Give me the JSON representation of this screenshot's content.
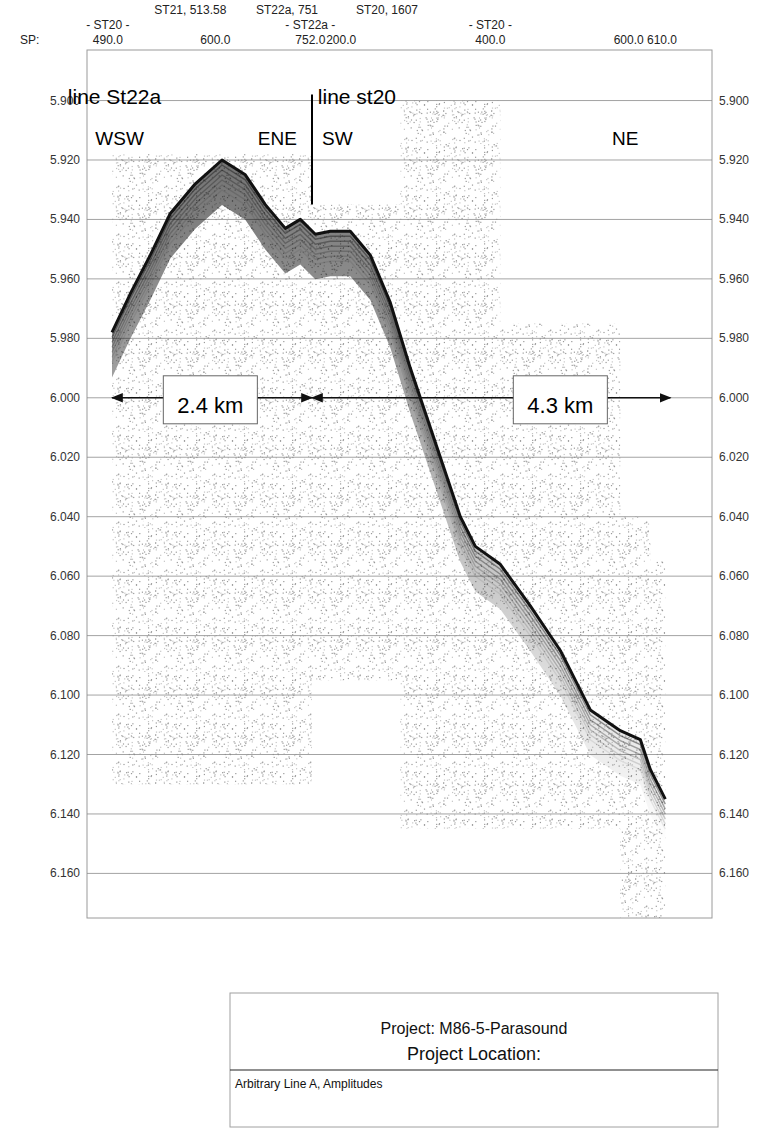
{
  "chart_data": {
    "type": "line",
    "x": [
      0,
      0.22,
      0.46,
      0.7,
      1.0,
      1.32,
      1.6,
      1.84,
      2.08,
      2.26,
      2.44,
      2.62,
      2.86,
      3.1,
      3.34,
      3.58,
      3.82,
      4.06,
      4.18,
      4.36,
      4.66,
      5.02,
      5.38,
      5.74,
      6.1,
      6.34,
      6.46,
      6.64
    ],
    "values": [
      5.978,
      5.965,
      5.952,
      5.938,
      5.928,
      5.92,
      5.925,
      5.935,
      5.943,
      5.94,
      5.945,
      5.944,
      5.944,
      5.952,
      5.968,
      5.99,
      6.01,
      6.03,
      6.04,
      6.05,
      6.056,
      6.07,
      6.085,
      6.105,
      6.112,
      6.115,
      6.125,
      6.135
    ],
    "color": "#111111",
    "xlim": [
      -0.3,
      7.2
    ],
    "ylim": [
      5.883,
      6.175
    ],
    "yticks": [
      {
        "value": 5.9,
        "label": "5.900"
      },
      {
        "value": 5.92,
        "label": "5.920"
      },
      {
        "value": 5.94,
        "label": "5.940"
      },
      {
        "value": 5.96,
        "label": "5.960"
      },
      {
        "value": 5.98,
        "label": "5.980"
      },
      {
        "value": 6.0,
        "label": "6.000"
      },
      {
        "value": 6.02,
        "label": "6.020"
      },
      {
        "value": 6.04,
        "label": "6.040"
      },
      {
        "value": 6.06,
        "label": "6.060"
      },
      {
        "value": 6.08,
        "label": "6.080"
      },
      {
        "value": 6.1,
        "label": "6.100"
      },
      {
        "value": 6.12,
        "label": "6.120"
      },
      {
        "value": 6.14,
        "label": "6.140"
      },
      {
        "value": 6.16,
        "label": "6.160"
      }
    ],
    "grid": true,
    "tick_labels": "y",
    "top_axis": {
      "prefix": "SP:",
      "ticks": [
        {
          "value": -0.05,
          "label": "490.0"
        },
        {
          "value": 1.24,
          "label": "600.0"
        },
        {
          "value": 2.38,
          "label": "752.0"
        },
        {
          "value": 2.75,
          "label": "200.0"
        },
        {
          "value": 4.54,
          "label": "400.0"
        },
        {
          "value": 6.2,
          "label": "600.0"
        },
        {
          "value": 6.6,
          "label": "610.0"
        }
      ],
      "line_labels": [
        {
          "value": -0.05,
          "label": "- ST20 -"
        },
        {
          "value": 2.38,
          "label": "- ST22a -"
        },
        {
          "value": 4.54,
          "label": "- ST20 -"
        }
      ],
      "stations": [
        {
          "value": 0.94,
          "label": "ST21, 513.58"
        },
        {
          "value": 2.1,
          "label": "ST22a, 751"
        },
        {
          "value": 3.3,
          "label": "ST20, 1607"
        }
      ]
    },
    "annotations": [
      {
        "text": "line St22a",
        "x": -0.53,
        "y": 5.901
      },
      {
        "text": "line st20",
        "x": 2.47,
        "y": 5.901
      },
      {
        "text": "WSW",
        "x": -0.2,
        "y": 5.915
      },
      {
        "text": "ENE",
        "x": 1.75,
        "y": 5.915
      },
      {
        "text": "SW",
        "x": 2.52,
        "y": 5.915
      },
      {
        "text": "NE",
        "x": 6.0,
        "y": 5.915
      }
    ],
    "divider": {
      "x": 2.4,
      "y": [
        5.898,
        5.935
      ]
    },
    "measurements": [
      {
        "from": 0,
        "to": 2.4,
        "y": 6.0,
        "label": "2.4 km",
        "label_x": 1.18
      },
      {
        "from": 2.4,
        "to": 6.7,
        "y": 6.0,
        "label": "4.3 km",
        "label_x": 5.38
      }
    ],
    "record_windows": [
      [
        0,
        2.4,
        5.918,
        6.13
      ],
      [
        2.4,
        3.46,
        5.935,
        6.095
      ],
      [
        3.46,
        4.66,
        5.9,
        6.145
      ],
      [
        4.66,
        6.1,
        5.975,
        6.145
      ],
      [
        6.1,
        6.46,
        6.04,
        6.175
      ],
      [
        6.46,
        6.64,
        6.055,
        6.175
      ]
    ]
  },
  "legend_box": {
    "project": "Project: M86-5-Parasound",
    "location": "Project Location:",
    "line": "Arbitrary Line A, Amplitudes"
  }
}
